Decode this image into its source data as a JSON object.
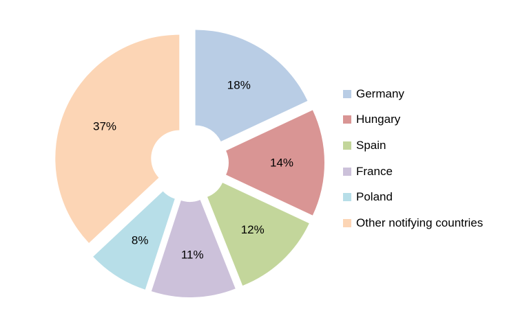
{
  "chart_data": {
    "type": "pie",
    "variant": "exploded-donut",
    "title": "",
    "unit": "%",
    "slices": [
      {
        "label": "Germany",
        "value": 18,
        "value_label": "18%",
        "color": "#B9CDE5"
      },
      {
        "label": "Hungary",
        "value": 14,
        "value_label": "14%",
        "color": "#D99594"
      },
      {
        "label": "Spain",
        "value": 12,
        "value_label": "12%",
        "color": "#C3D69B"
      },
      {
        "label": "France",
        "value": 11,
        "value_label": "11%",
        "color": "#CCC1DA"
      },
      {
        "label": "Poland",
        "value": 8,
        "value_label": "8%",
        "color": "#B7DEE8"
      },
      {
        "label": "Other notifying countries",
        "value": 37,
        "value_label": "37%",
        "color": "#FCD5B5"
      }
    ],
    "legend": {
      "position": "right"
    }
  }
}
